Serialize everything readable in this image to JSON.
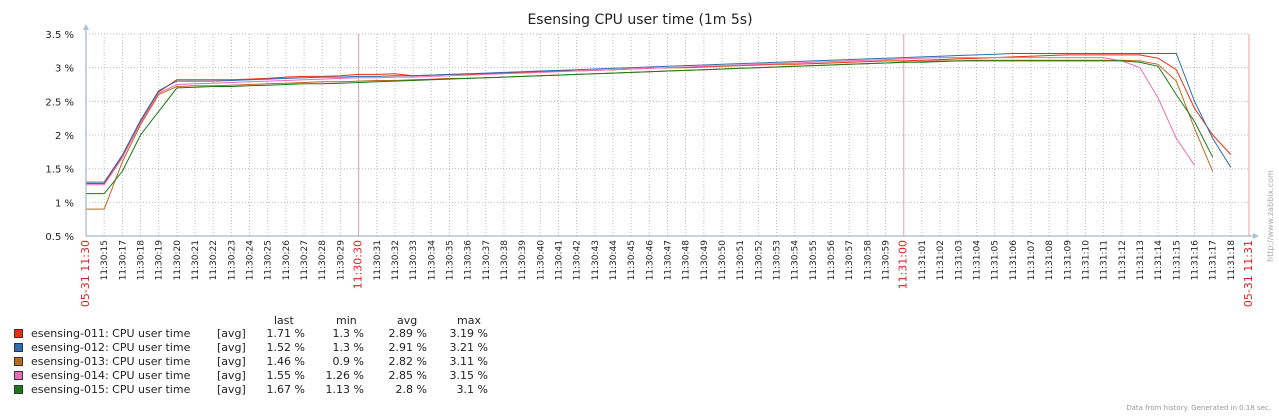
{
  "chart_data": {
    "type": "line",
    "title": "Esensing CPU user time (1m 5s)",
    "ylim": [
      0.5,
      3.5
    ],
    "yticks": [
      "0.5 %",
      "1 %",
      "1.5 %",
      "2 %",
      "2.5 %",
      "3 %",
      "3.5 %"
    ],
    "ytick_values": [
      0.5,
      1,
      1.5,
      2,
      2.5,
      3,
      3.5
    ],
    "x_labels": [
      "05-31 11:30",
      "11:30:15",
      "11:30:17",
      "11:30:18",
      "11:30:19",
      "11:30:20",
      "11:30:21",
      "11:30:22",
      "11:30:23",
      "11:30:24",
      "11:30:25",
      "11:30:26",
      "11:30:27",
      "11:30:28",
      "11:30:29",
      "11:30:30",
      "11:30:31",
      "11:30:32",
      "11:30:33",
      "11:30:34",
      "11:30:35",
      "11:30:36",
      "11:30:37",
      "11:30:38",
      "11:30:39",
      "11:30:40",
      "11:30:41",
      "11:30:42",
      "11:30:43",
      "11:30:44",
      "11:30:45",
      "11:30:46",
      "11:30:47",
      "11:30:48",
      "11:30:49",
      "11:30:50",
      "11:30:51",
      "11:30:52",
      "11:30:53",
      "11:30:54",
      "11:30:55",
      "11:30:56",
      "11:30:57",
      "11:30:58",
      "11:30:59",
      "11:31:00",
      "11:31:01",
      "11:31:02",
      "11:31:03",
      "11:31:04",
      "11:31:05",
      "11:31:06",
      "11:31:07",
      "11:31:08",
      "11:31:09",
      "11:31:10",
      "11:31:11",
      "11:31:12",
      "11:31:13",
      "11:31:14",
      "11:31:15",
      "11:31:16",
      "11:31:17",
      "11:31:18",
      "05-31 11:31"
    ],
    "x_label_colors": [
      "red",
      "black",
      "black",
      "black",
      "black",
      "black",
      "black",
      "black",
      "black",
      "black",
      "black",
      "black",
      "black",
      "black",
      "black",
      "red",
      "black",
      "black",
      "black",
      "black",
      "black",
      "black",
      "black",
      "black",
      "black",
      "black",
      "black",
      "black",
      "black",
      "black",
      "black",
      "black",
      "black",
      "black",
      "black",
      "black",
      "black",
      "black",
      "black",
      "black",
      "black",
      "black",
      "black",
      "black",
      "black",
      "red",
      "black",
      "black",
      "black",
      "black",
      "black",
      "black",
      "black",
      "black",
      "black",
      "black",
      "black",
      "black",
      "black",
      "black",
      "black",
      "black",
      "black",
      "black",
      "red"
    ],
    "series": [
      {
        "name": "esensing-011: CPU user time",
        "color": "#e8300c",
        "values": [
          1.28,
          1.28,
          1.68,
          2.2,
          2.64,
          2.82,
          2.82,
          2.82,
          2.82,
          2.83,
          2.84,
          2.86,
          2.87,
          2.87,
          2.88,
          2.9,
          2.9,
          2.91,
          2.88,
          2.89,
          2.9,
          2.9,
          2.91,
          2.92,
          2.93,
          2.94,
          2.95,
          2.95,
          2.96,
          2.97,
          2.98,
          2.99,
          3.0,
          3.0,
          3.01,
          3.02,
          3.03,
          3.04,
          3.05,
          3.05,
          3.06,
          3.07,
          3.08,
          3.09,
          3.1,
          3.1,
          3.11,
          3.12,
          3.13,
          3.14,
          3.15,
          3.16,
          3.17,
          3.18,
          3.19,
          3.19,
          3.19,
          3.19,
          3.19,
          3.14,
          2.97,
          2.4,
          2.0,
          1.71
        ]
      },
      {
        "name": "esensing-012: CPU user time",
        "color": "#2f6db0",
        "values": [
          1.3,
          1.3,
          1.7,
          2.22,
          2.66,
          2.8,
          2.8,
          2.8,
          2.81,
          2.82,
          2.83,
          2.84,
          2.85,
          2.86,
          2.86,
          2.87,
          2.87,
          2.88,
          2.88,
          2.89,
          2.9,
          2.91,
          2.92,
          2.93,
          2.94,
          2.95,
          2.96,
          2.97,
          2.98,
          2.99,
          3.0,
          3.01,
          3.02,
          3.03,
          3.04,
          3.05,
          3.06,
          3.07,
          3.08,
          3.09,
          3.1,
          3.11,
          3.12,
          3.13,
          3.14,
          3.15,
          3.16,
          3.17,
          3.18,
          3.19,
          3.2,
          3.21,
          3.21,
          3.21,
          3.21,
          3.21,
          3.21,
          3.21,
          3.21,
          3.21,
          3.21,
          2.5,
          1.95,
          1.52
        ]
      },
      {
        "name": "esensing-013: CPU user time",
        "color": "#b86a1f",
        "values": [
          0.9,
          0.9,
          1.6,
          2.15,
          2.6,
          2.72,
          2.73,
          2.73,
          2.74,
          2.75,
          2.76,
          2.77,
          2.78,
          2.79,
          2.79,
          2.8,
          2.81,
          2.81,
          2.82,
          2.83,
          2.84,
          2.84,
          2.85,
          2.86,
          2.87,
          2.88,
          2.89,
          2.9,
          2.91,
          2.92,
          2.93,
          2.94,
          2.95,
          2.96,
          2.97,
          2.98,
          2.99,
          3.0,
          3.01,
          3.02,
          3.03,
          3.04,
          3.05,
          3.06,
          3.07,
          3.08,
          3.09,
          3.1,
          3.1,
          3.11,
          3.11,
          3.11,
          3.11,
          3.11,
          3.11,
          3.11,
          3.11,
          3.11,
          3.1,
          3.05,
          2.8,
          2.1,
          1.46
        ]
      },
      {
        "name": "esensing-014: CPU user time",
        "color": "#e86fb5",
        "values": [
          1.26,
          1.26,
          1.66,
          2.18,
          2.62,
          2.75,
          2.76,
          2.77,
          2.78,
          2.79,
          2.8,
          2.81,
          2.82,
          2.83,
          2.84,
          2.85,
          2.85,
          2.86,
          2.86,
          2.87,
          2.88,
          2.89,
          2.9,
          2.91,
          2.92,
          2.93,
          2.94,
          2.95,
          2.96,
          2.97,
          2.98,
          2.99,
          3.0,
          3.01,
          3.02,
          3.03,
          3.04,
          3.05,
          3.06,
          3.07,
          3.08,
          3.09,
          3.1,
          3.11,
          3.12,
          3.13,
          3.14,
          3.15,
          3.15,
          3.15,
          3.15,
          3.15,
          3.15,
          3.15,
          3.15,
          3.15,
          3.15,
          3.1,
          3.0,
          2.55,
          1.95,
          1.55
        ]
      },
      {
        "name": "esensing-015: CPU user time",
        "color": "#1a7a17",
        "values": [
          1.13,
          1.13,
          1.46,
          2.0,
          2.35,
          2.7,
          2.71,
          2.72,
          2.72,
          2.73,
          2.74,
          2.75,
          2.76,
          2.76,
          2.77,
          2.78,
          2.79,
          2.8,
          2.81,
          2.82,
          2.83,
          2.84,
          2.85,
          2.86,
          2.87,
          2.88,
          2.89,
          2.9,
          2.91,
          2.92,
          2.93,
          2.94,
          2.95,
          2.96,
          2.97,
          2.98,
          2.99,
          3.0,
          3.01,
          3.02,
          3.03,
          3.04,
          3.05,
          3.06,
          3.07,
          3.08,
          3.08,
          3.09,
          3.1,
          3.1,
          3.1,
          3.1,
          3.1,
          3.1,
          3.1,
          3.1,
          3.1,
          3.1,
          3.08,
          3.02,
          2.6,
          2.2,
          1.67
        ]
      }
    ]
  },
  "legend": {
    "headers": {
      "last": "last",
      "min": "min",
      "avg": "avg",
      "max": "max"
    },
    "rows": [
      {
        "name": "esensing-011: CPU user time",
        "fn": "[avg]",
        "color": "#e8300c",
        "last": "1.71 %",
        "min": "1.3 %",
        "avg": "2.89 %",
        "max": "3.19 %"
      },
      {
        "name": "esensing-012: CPU user time",
        "fn": "[avg]",
        "color": "#2f6db0",
        "last": "1.52 %",
        "min": "1.3 %",
        "avg": "2.91 %",
        "max": "3.21 %"
      },
      {
        "name": "esensing-013: CPU user time",
        "fn": "[avg]",
        "color": "#b86a1f",
        "last": "1.46 %",
        "min": "0.9 %",
        "avg": "2.82 %",
        "max": "3.11 %"
      },
      {
        "name": "esensing-014: CPU user time",
        "fn": "[avg]",
        "color": "#e86fb5",
        "last": "1.55 %",
        "min": "1.26 %",
        "avg": "2.85 %",
        "max": "3.15 %"
      },
      {
        "name": "esensing-015: CPU user time",
        "fn": "[avg]",
        "color": "#1a7a17",
        "last": "1.67 %",
        "min": "1.13 %",
        "avg": "2.8 %",
        "max": "3.1 %"
      }
    ]
  },
  "footer": "Data from history. Generated in 0.18 sec.",
  "side_text": "http://www.zabbix.com"
}
